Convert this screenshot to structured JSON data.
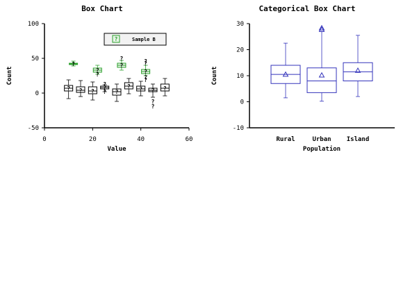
{
  "chart_data": [
    {
      "type": "box",
      "title": "Box Chart",
      "xlabel": "Value",
      "ylabel": "Count",
      "xlim": [
        0,
        60
      ],
      "ylim": [
        -50,
        100
      ],
      "xticks": [
        0,
        20,
        40,
        60
      ],
      "yticks": [
        -50,
        0,
        50,
        100
      ],
      "grid": false,
      "legend": {
        "position": "top-right",
        "entries": [
          "Sample B"
        ]
      },
      "marker_symbol": "?",
      "series": [
        {
          "name": "",
          "color": "#000000",
          "boxes": [
            {
              "x": 10,
              "whisker_low": -8,
              "q1": 3,
              "median": 7,
              "q3": 11,
              "whisker_high": 19,
              "mean": 7,
              "outliers": []
            },
            {
              "x": 15,
              "whisker_low": -5,
              "q1": 1,
              "median": 4,
              "q3": 9,
              "whisker_high": 18,
              "mean": 4,
              "outliers": []
            },
            {
              "x": 20,
              "whisker_low": -10,
              "q1": -1,
              "median": 3,
              "q3": 9,
              "whisker_high": 16,
              "mean": 3,
              "outliers": []
            },
            {
              "x": 25,
              "whisker_low": 2,
              "q1": 6,
              "median": 8,
              "q3": 10,
              "whisker_high": 12,
              "mean": 8,
              "outliers": [
                2,
                13
              ]
            },
            {
              "x": 30,
              "whisker_low": -12,
              "q1": -3,
              "median": 2,
              "q3": 6,
              "whisker_high": 13,
              "mean": 2,
              "outliers": []
            },
            {
              "x": 35,
              "whisker_low": -1,
              "q1": 6,
              "median": 10,
              "q3": 15,
              "whisker_high": 21,
              "mean": 10,
              "outliers": []
            },
            {
              "x": 40,
              "whisker_low": -4,
              "q1": 3,
              "median": 6,
              "q3": 10,
              "whisker_high": 17,
              "mean": 6,
              "outliers": []
            },
            {
              "x": 45,
              "whisker_low": -6,
              "q1": 2,
              "median": 4,
              "q3": 7,
              "whisker_high": 13,
              "mean": 4,
              "outliers": [
                -12,
                -19
              ]
            },
            {
              "x": 50,
              "whisker_low": -4,
              "q1": 3,
              "median": 7,
              "q3": 13,
              "whisker_high": 21,
              "mean": 7,
              "outliers": []
            }
          ]
        },
        {
          "name": "Sample B",
          "color": "#2ca02c",
          "fill": "#e8f5e8",
          "boxes": [
            {
              "x": 12,
              "whisker_low": 39,
              "q1": 41,
              "median": 42,
              "q3": 43,
              "whisker_high": 46,
              "mean": 42,
              "outliers": []
            },
            {
              "x": 22,
              "whisker_low": 27,
              "q1": 30,
              "median": 33,
              "q3": 36,
              "whisker_high": 40,
              "mean": 33,
              "outliers": [
                27
              ]
            },
            {
              "x": 32,
              "whisker_low": 33,
              "q1": 37,
              "median": 40,
              "q3": 43,
              "whisker_high": 47,
              "mean": 40,
              "outliers": [
                50
              ]
            },
            {
              "x": 42,
              "whisker_low": 25,
              "q1": 28,
              "median": 31,
              "q3": 34,
              "whisker_high": 40,
              "mean": 31,
              "outliers": [
                19,
                23,
                43,
                46
              ]
            }
          ]
        }
      ]
    },
    {
      "type": "box",
      "title": "Categorical Box Chart",
      "xlabel": "Population",
      "ylabel": "Count",
      "categories": [
        "Rural",
        "Urban",
        "Island"
      ],
      "ylim": [
        -10,
        30
      ],
      "yticks": [
        -10,
        0,
        10,
        20,
        30
      ],
      "grid": false,
      "color": "#3333bb",
      "marker_symbol": "triangle",
      "series": [
        {
          "name": "",
          "boxes": [
            {
              "category": "Rural",
              "whisker_low": 1.5,
              "q1": 7,
              "median": 10.5,
              "q3": 14,
              "whisker_high": 22.5,
              "mean": 10.5,
              "outliers": []
            },
            {
              "category": "Urban",
              "whisker_low": 0.2,
              "q1": 3.5,
              "median": 8,
              "q3": 13,
              "whisker_high": 27,
              "mean": 10.2,
              "outliers": [
                27.7,
                28.3
              ]
            },
            {
              "category": "Island",
              "whisker_low": 2,
              "q1": 8,
              "median": 11.5,
              "q3": 15,
              "whisker_high": 25.5,
              "mean": 12,
              "outliers": []
            }
          ]
        }
      ]
    }
  ]
}
